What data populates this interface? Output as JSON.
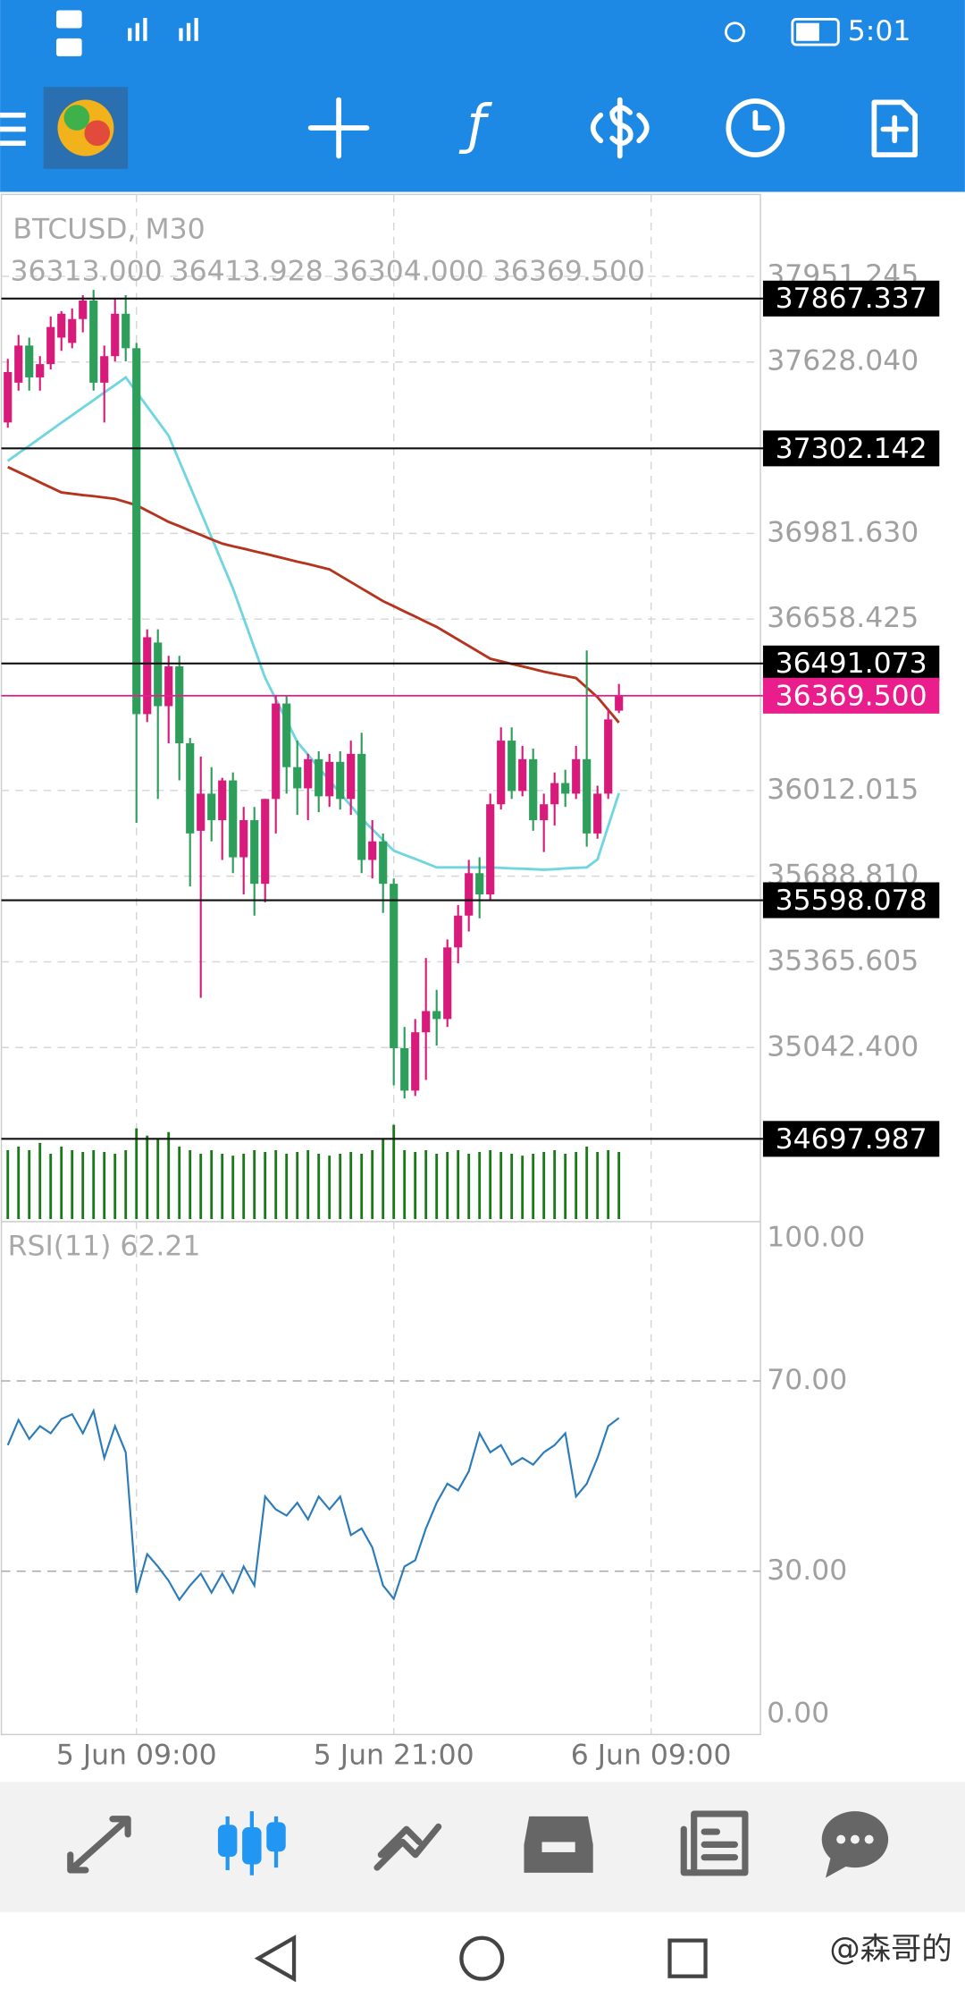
{
  "status_bar": {
    "time": "5:01"
  },
  "watermark": "@森哥的",
  "chart_data": [
    {
      "type": "candlestick",
      "title": "BTCUSD, M30",
      "subtitle": "36313.000 36413.928 36304.000 36369.500",
      "bull_color": "#d81b7a",
      "bear_color": "#2e9e5b",
      "candles": [
        [
          37400,
          37640,
          37380,
          37590
        ],
        [
          37550,
          37730,
          37520,
          37690
        ],
        [
          37690,
          37720,
          37520,
          37570
        ],
        [
          37570,
          37650,
          37520,
          37620
        ],
        [
          37620,
          37800,
          37600,
          37760
        ],
        [
          37720,
          37820,
          37670,
          37810
        ],
        [
          37700,
          37830,
          37680,
          37790
        ],
        [
          37790,
          37880,
          37740,
          37860
        ],
        [
          37860,
          37900,
          37520,
          37550
        ],
        [
          37550,
          37690,
          37400,
          37650
        ],
        [
          37650,
          37870,
          37630,
          37810
        ],
        [
          37810,
          37880,
          37630,
          37680
        ],
        [
          37680,
          37700,
          35890,
          36300
        ],
        [
          36300,
          36620,
          36270,
          36590
        ],
        [
          36570,
          36620,
          35980,
          36330
        ],
        [
          36330,
          36520,
          36190,
          36480
        ],
        [
          36480,
          36520,
          36050,
          36190
        ],
        [
          36190,
          36210,
          35650,
          35850
        ],
        [
          35860,
          36140,
          35230,
          36000
        ],
        [
          36000,
          36100,
          35820,
          35900
        ],
        [
          35900,
          36060,
          35750,
          36050
        ],
        [
          36050,
          36080,
          35700,
          35760
        ],
        [
          35760,
          35950,
          35620,
          35900
        ],
        [
          35900,
          35950,
          35540,
          35660
        ],
        [
          35660,
          35980,
          35590,
          35980
        ],
        [
          35980,
          36370,
          35850,
          36340
        ],
        [
          36340,
          36370,
          36000,
          36100
        ],
        [
          36100,
          36200,
          35920,
          36020
        ],
        [
          36020,
          36150,
          35900,
          36130
        ],
        [
          36130,
          36160,
          35930,
          35990
        ],
        [
          35990,
          36150,
          35950,
          36120
        ],
        [
          36120,
          36160,
          35940,
          35980
        ],
        [
          35980,
          36200,
          35920,
          36150
        ],
        [
          36150,
          36230,
          35700,
          35750
        ],
        [
          35750,
          35900,
          35680,
          35820
        ],
        [
          35820,
          35850,
          35550,
          35660
        ],
        [
          35660,
          35680,
          34900,
          35040
        ],
        [
          35040,
          35120,
          34850,
          34880
        ],
        [
          34880,
          35150,
          34860,
          35100
        ],
        [
          35100,
          35380,
          34920,
          35180
        ],
        [
          35180,
          35260,
          35050,
          35150
        ],
        [
          35150,
          35450,
          35120,
          35420
        ],
        [
          35420,
          35580,
          35360,
          35540
        ],
        [
          35540,
          35750,
          35480,
          35700
        ],
        [
          35700,
          35760,
          35530,
          35620
        ],
        [
          35620,
          36000,
          35600,
          35960
        ],
        [
          35960,
          36250,
          35940,
          36200
        ],
        [
          36200,
          36250,
          35980,
          36010
        ],
        [
          36010,
          36180,
          35990,
          36130
        ],
        [
          36130,
          36170,
          35860,
          35900
        ],
        [
          35900,
          36000,
          35780,
          35960
        ],
        [
          35960,
          36080,
          35880,
          36040
        ],
        [
          36040,
          36090,
          35950,
          36000
        ],
        [
          36000,
          36180,
          35980,
          36130
        ],
        [
          36130,
          36540,
          35800,
          35850
        ],
        [
          35850,
          36030,
          35830,
          36000
        ],
        [
          36000,
          36320,
          35980,
          36280
        ],
        [
          36313,
          36413.928,
          36304,
          36369.5
        ]
      ],
      "ma_fast": {
        "color": "#6fd6e0",
        "values": [
          37255,
          37284,
          37312,
          37341,
          37370,
          37399,
          37427,
          37456,
          37484,
          37513,
          37541,
          37570,
          37515,
          37460,
          37405,
          37350,
          37254,
          37159,
          37063,
          36967,
          36870,
          36774,
          36662,
          36549,
          36437,
          36356,
          36276,
          36195,
          36147,
          36098,
          36050,
          36002,
          35954,
          35906,
          35866,
          35825,
          35785,
          35769,
          35754,
          35738,
          35722,
          35722,
          35722,
          35722,
          35722,
          35722,
          35720,
          35718,
          35717,
          35715,
          35713,
          35715,
          35718,
          35720,
          35722,
          35752,
          35877,
          36002
        ]
      },
      "ma_slow": {
        "color": "#b5341e",
        "values": [
          37232,
          37213,
          37194,
          37174,
          37155,
          37136,
          37131,
          37126,
          37122,
          37117,
          37112,
          37100,
          37088,
          37067,
          37046,
          37025,
          37009,
          36992,
          36976,
          36959,
          36943,
          36933,
          36924,
          36914,
          36905,
          36895,
          36885,
          36875,
          36866,
          36856,
          36846,
          36822,
          36798,
          36774,
          36750,
          36726,
          36707,
          36687,
          36668,
          36648,
          36629,
          36605,
          36581,
          36557,
          36533,
          36509,
          36499,
          36489,
          36480,
          36470,
          36460,
          36452,
          36444,
          36436,
          36400,
          36364,
          36316,
          36268
        ]
      },
      "volume_color": "#1a7a1a",
      "volumes": [
        38,
        40,
        38,
        42,
        36,
        40,
        38,
        37,
        38,
        37,
        36,
        38,
        50,
        46,
        44,
        48,
        40,
        38,
        36,
        38,
        36,
        35,
        36,
        38,
        37,
        38,
        36,
        37,
        38,
        36,
        35,
        36,
        37,
        36,
        38,
        44,
        52,
        38,
        37,
        38,
        36,
        37,
        38,
        36,
        37,
        38,
        37,
        36,
        35,
        36,
        37,
        38,
        36,
        37,
        40,
        37,
        38,
        37
      ],
      "volume_ylim": [
        0,
        60
      ],
      "levels": [
        37867.337,
        37302.142,
        36491.073,
        35598.078,
        34697.987
      ],
      "current_price": {
        "value": 36369.5,
        "label": "36369.500"
      },
      "current_color": "#e91e8c",
      "xlim": [
        -0.6,
        70.2
      ],
      "xticks": [
        {
          "value": 12,
          "label": "5 Jun 09:00"
        },
        {
          "value": 36,
          "label": "5 Jun 21:00"
        },
        {
          "value": 60,
          "label": "6 Jun 09:00"
        }
      ],
      "ylim": [
        34386,
        38260
      ],
      "yticks": [
        37951.245,
        {
          "value": 37628.04,
          "label": "37628.040"
        },
        {
          "value": 36981.63,
          "label": "36981.630"
        },
        36658.425,
        36012.015,
        {
          "value": 35688.81,
          "label": "35688.810"
        },
        35365.605,
        {
          "value": 35042.4,
          "label": "35042.400"
        }
      ],
      "grid": true
    },
    {
      "type": "line",
      "title": "RSI(11) 62.21",
      "color": "#2b7bb9",
      "values": [
        56.5,
        61.8,
        57.8,
        60.5,
        59,
        62,
        63,
        59,
        63.7,
        53.8,
        60.5,
        55,
        25.5,
        33.6,
        31,
        28,
        24,
        27,
        29.5,
        25.5,
        29.5,
        25.5,
        31,
        27,
        45.7,
        43,
        41.7,
        44.4,
        40.9,
        45.7,
        43,
        45.7,
        37.6,
        39,
        35,
        27,
        24.2,
        31,
        32.3,
        39,
        44.4,
        48.4,
        47,
        51,
        59,
        55,
        56.5,
        52.4,
        53.8,
        52.4,
        55,
        56.5,
        59,
        45.7,
        48.4,
        53.8,
        60.5,
        62.21
      ],
      "xlim": [
        -0.6,
        70.2
      ],
      "ylim": [
        -4.6,
        103.5
      ],
      "yticks": [
        {
          "value": 100,
          "label": "100.00"
        },
        {
          "value": 70,
          "label": "70.00"
        },
        {
          "value": 30,
          "label": "30.00"
        },
        {
          "value": 0,
          "label": "0.00"
        }
      ],
      "grid": true
    }
  ]
}
